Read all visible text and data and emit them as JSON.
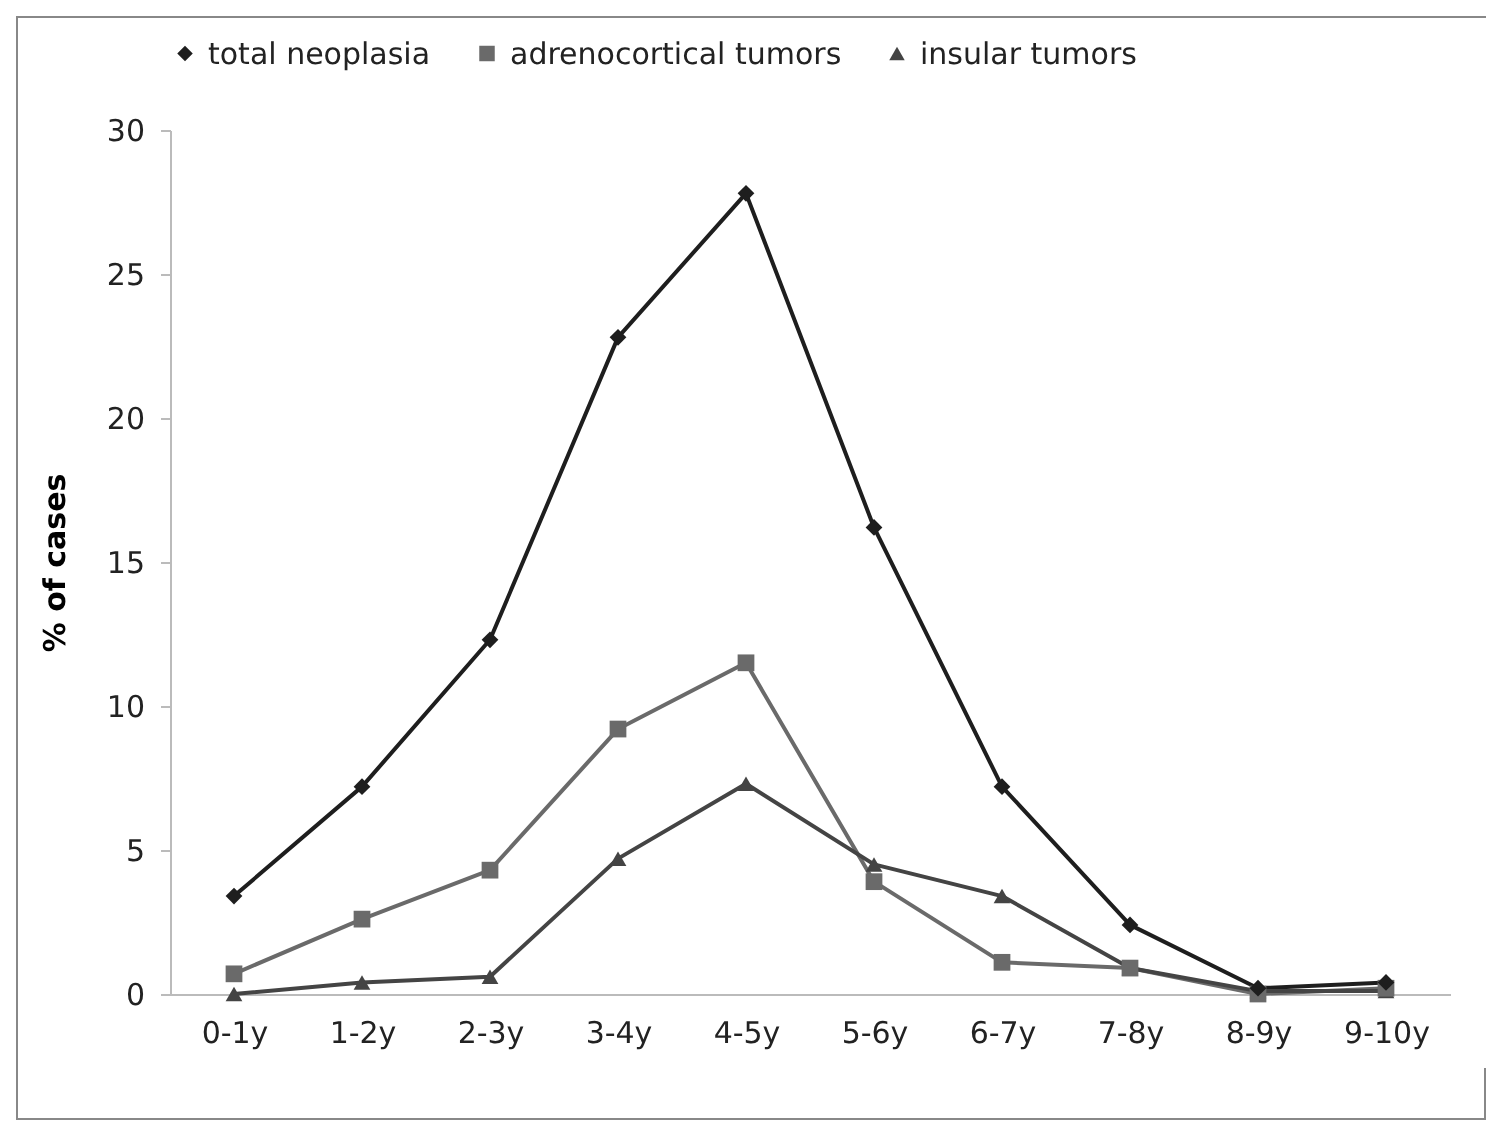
{
  "chart_data": {
    "type": "line",
    "ylabel": "% of cases",
    "categories": [
      "0-1y",
      "1-2y",
      "2-3y",
      "3-4y",
      "4-5y",
      "5-6y",
      "6-7y",
      "7-8y",
      "8-9y",
      "9-10y"
    ],
    "series": [
      {
        "name": "total neoplasia",
        "color": "#1e1e1e",
        "marker": "diamond",
        "values": [
          3.4,
          7.2,
          12.3,
          22.8,
          27.8,
          16.2,
          7.2,
          2.4,
          0.2,
          0.4
        ]
      },
      {
        "name": "adrenocortical tumors",
        "color": "#6a6a6a",
        "marker": "square",
        "values": [
          0.7,
          2.6,
          4.3,
          9.2,
          11.5,
          3.9,
          1.1,
          0.9,
          0,
          0.2
        ]
      },
      {
        "name": "insular tumors",
        "color": "#444444",
        "marker": "triangle",
        "values": [
          0,
          0.4,
          0.6,
          4.7,
          7.3,
          4.5,
          3.4,
          0.9,
          0.1,
          0.1
        ]
      }
    ],
    "ylim": [
      0,
      30
    ],
    "yticks": [
      0,
      5,
      10,
      15,
      20,
      25,
      30
    ],
    "grid": false,
    "legend": "top"
  }
}
